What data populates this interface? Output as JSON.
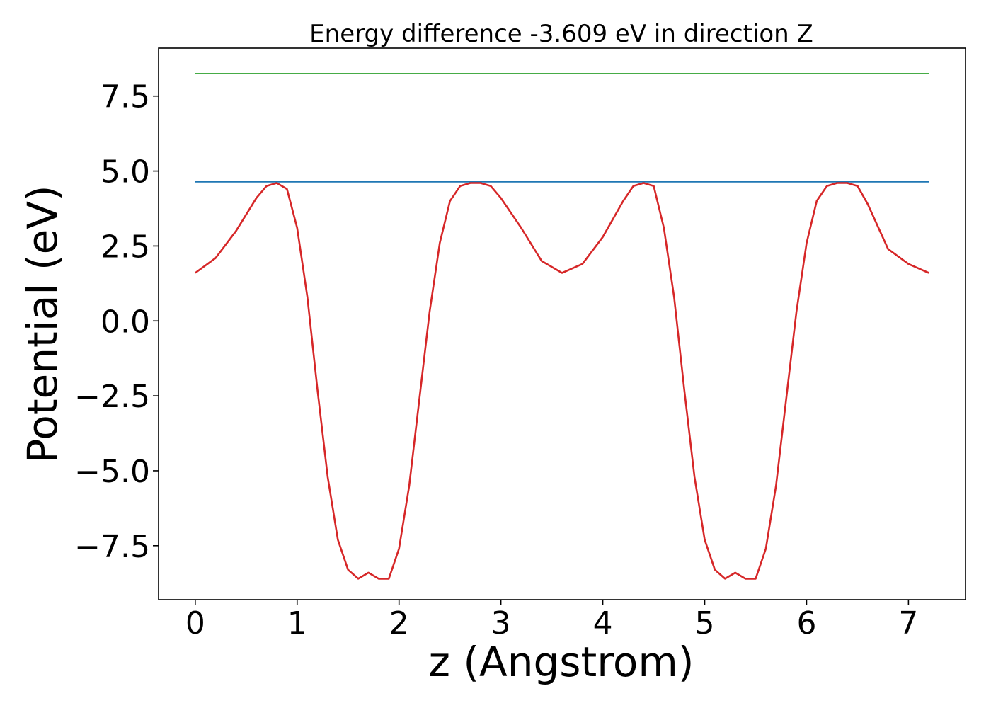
{
  "chart_data": {
    "type": "line",
    "title": "Energy difference -3.609 eV in direction Z",
    "xlabel": "z (Angstrom)",
    "ylabel": "Potential (eV)",
    "xlim": [
      -0.36,
      7.56
    ],
    "ylim": [
      -9.3,
      9.1
    ],
    "xticks": [
      0,
      1,
      2,
      3,
      4,
      5,
      6,
      7
    ],
    "xtick_labels": [
      "0",
      "1",
      "2",
      "3",
      "4",
      "5",
      "6",
      "7"
    ],
    "yticks": [
      -7.5,
      -5.0,
      -2.5,
      0.0,
      2.5,
      5.0,
      7.5
    ],
    "ytick_labels": [
      "−7.5",
      "−5.0",
      "−2.5",
      "0.0",
      "2.5",
      "5.0",
      "7.5"
    ],
    "grid": false,
    "legend": "none",
    "series": [
      {
        "color": "#2ca02c",
        "x": [
          0,
          7.2
        ],
        "y": [
          8.25,
          8.25
        ]
      },
      {
        "color": "#1f77b4",
        "x": [
          0,
          7.2
        ],
        "y": [
          4.64,
          4.64
        ]
      },
      {
        "color": "#d62728",
        "x": [
          0.0,
          0.2,
          0.4,
          0.6,
          0.7,
          0.8,
          0.9,
          1.0,
          1.1,
          1.2,
          1.3,
          1.4,
          1.5,
          1.6,
          1.7,
          1.8,
          1.9,
          2.0,
          2.1,
          2.2,
          2.3,
          2.4,
          2.5,
          2.6,
          2.7,
          2.8,
          2.9,
          3.0,
          3.2,
          3.4,
          3.6,
          3.8,
          4.0,
          4.2,
          4.3,
          4.4,
          4.5,
          4.6,
          4.7,
          4.8,
          4.9,
          5.0,
          5.1,
          5.2,
          5.3,
          5.4,
          5.5,
          5.6,
          5.7,
          5.8,
          5.9,
          6.0,
          6.1,
          6.2,
          6.3,
          6.4,
          6.5,
          6.6,
          6.8,
          7.0,
          7.2
        ],
        "y": [
          1.6,
          2.1,
          3.0,
          4.1,
          4.5,
          4.6,
          4.4,
          3.1,
          0.8,
          -2.3,
          -5.2,
          -7.3,
          -8.3,
          -8.6,
          -8.4,
          -8.6,
          -8.6,
          -7.6,
          -5.5,
          -2.6,
          0.3,
          2.6,
          4.0,
          4.5,
          4.6,
          4.6,
          4.5,
          4.1,
          3.1,
          2.0,
          1.6,
          1.9,
          2.8,
          4.0,
          4.5,
          4.6,
          4.5,
          3.1,
          0.8,
          -2.3,
          -5.2,
          -7.3,
          -8.3,
          -8.6,
          -8.4,
          -8.6,
          -8.6,
          -7.6,
          -5.5,
          -2.6,
          0.3,
          2.6,
          4.0,
          4.5,
          4.6,
          4.6,
          4.5,
          3.9,
          2.4,
          1.9,
          1.6
        ]
      }
    ]
  }
}
